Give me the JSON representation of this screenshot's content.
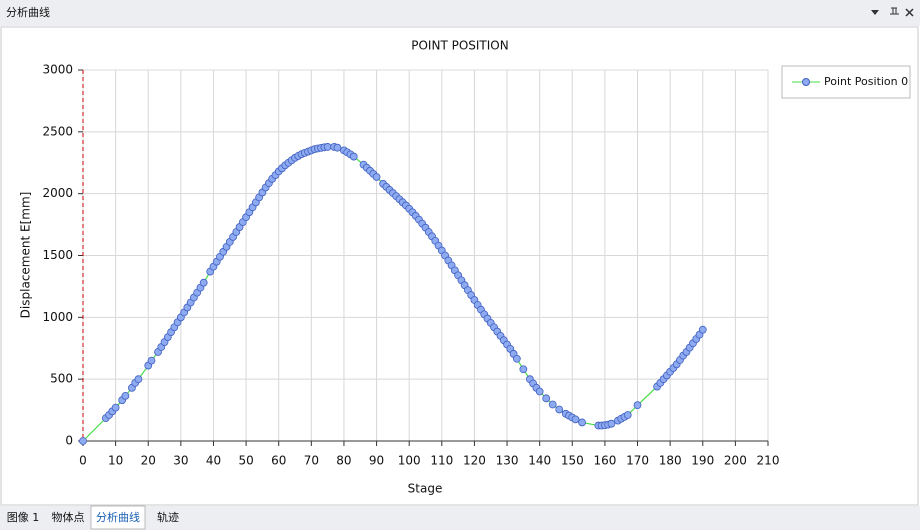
{
  "header": {
    "title": "分析曲线"
  },
  "tabs": [
    "图像 1",
    "物体点",
    "分析曲线",
    "轨迹"
  ],
  "active_tab": 2,
  "chart_data": {
    "type": "line",
    "title": "POINT POSITION",
    "x_label": "Stage",
    "y_label": "Displacement E[mm]",
    "x": [
      0,
      7,
      8,
      9,
      10,
      12,
      13,
      15,
      16,
      17,
      20,
      21,
      23,
      24,
      25,
      26,
      27,
      28,
      29,
      30,
      31,
      32,
      33,
      34,
      35,
      36,
      37,
      39,
      40,
      41,
      42,
      43,
      44,
      45,
      46,
      47,
      48,
      49,
      50,
      51,
      52,
      53,
      54,
      55,
      56,
      57,
      58,
      59,
      60,
      61,
      62,
      63,
      64,
      65,
      66,
      67,
      68,
      69,
      70,
      71,
      72,
      73,
      74,
      75,
      77,
      78,
      80,
      81,
      82,
      83,
      86,
      87,
      88,
      89,
      90,
      92,
      93,
      94,
      95,
      96,
      97,
      98,
      99,
      100,
      101,
      102,
      103,
      104,
      105,
      106,
      107,
      108,
      109,
      110,
      111,
      112,
      113,
      114,
      115,
      116,
      117,
      118,
      119,
      120,
      121,
      122,
      123,
      124,
      125,
      126,
      127,
      128,
      129,
      130,
      131,
      132,
      133,
      135,
      137,
      138,
      139,
      140,
      142,
      144,
      146,
      148,
      149,
      150,
      151,
      153,
      158,
      159,
      160,
      161,
      162,
      164,
      165,
      166,
      167,
      170,
      176,
      177,
      178,
      179,
      180,
      181,
      182,
      183,
      184,
      185,
      186,
      187,
      188,
      189,
      190
    ],
    "series": [
      {
        "name": "Point Position 0",
        "color": "#44dd44",
        "marker_fill": "#8eaaf0",
        "marker_stroke": "#4060c0",
        "values": [
          0,
          185,
          210,
          240,
          270,
          330,
          365,
          430,
          470,
          500,
          610,
          650,
          720,
          760,
          800,
          840,
          880,
          920,
          960,
          1000,
          1040,
          1080,
          1120,
          1160,
          1200,
          1240,
          1280,
          1370,
          1410,
          1450,
          1490,
          1530,
          1570,
          1610,
          1650,
          1690,
          1730,
          1770,
          1810,
          1850,
          1890,
          1930,
          1970,
          2010,
          2050,
          2085,
          2120,
          2150,
          2180,
          2205,
          2230,
          2250,
          2270,
          2290,
          2305,
          2320,
          2330,
          2340,
          2350,
          2360,
          2365,
          2370,
          2375,
          2378,
          2378,
          2372,
          2350,
          2335,
          2318,
          2300,
          2235,
          2210,
          2185,
          2160,
          2135,
          2080,
          2055,
          2030,
          2005,
          1980,
          1955,
          1930,
          1905,
          1878,
          1850,
          1820,
          1790,
          1758,
          1725,
          1690,
          1655,
          1618,
          1580,
          1540,
          1500,
          1460,
          1420,
          1380,
          1340,
          1300,
          1260,
          1220,
          1180,
          1140,
          1100,
          1062,
          1025,
          990,
          955,
          920,
          885,
          850,
          815,
          780,
          745,
          705,
          665,
          580,
          500,
          465,
          430,
          400,
          345,
          295,
          255,
          220,
          205,
          190,
          175,
          150,
          125,
          125,
          128,
          132,
          140,
          165,
          180,
          195,
          210,
          290,
          440,
          470,
          500,
          530,
          560,
          590,
          620,
          655,
          690,
          720,
          755,
          790,
          825,
          860,
          900
        ]
      }
    ],
    "xlim": [
      0,
      210
    ],
    "xticks": [
      0,
      10,
      20,
      30,
      40,
      50,
      60,
      70,
      80,
      90,
      100,
      110,
      120,
      130,
      140,
      150,
      160,
      170,
      180,
      190,
      200,
      210
    ],
    "ylim": [
      0,
      3000
    ],
    "yticks": [
      0,
      500,
      1000,
      1500,
      2000,
      2500,
      3000
    ],
    "grid": true,
    "legend": "top-right"
  }
}
